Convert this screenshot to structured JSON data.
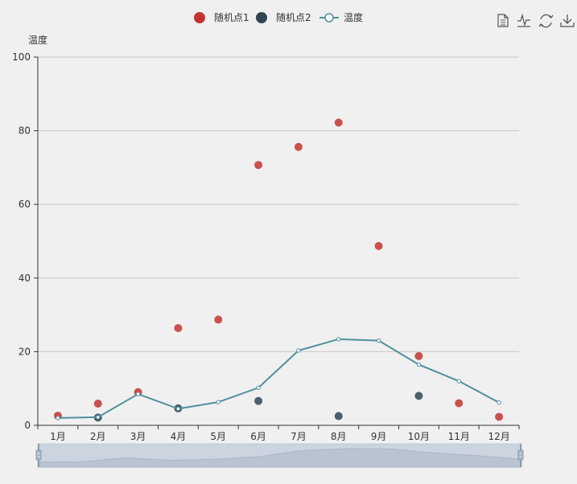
{
  "toolbox": {
    "items": [
      {
        "name": "data-view-icon"
      },
      {
        "name": "line-chart-icon"
      },
      {
        "name": "restore-icon"
      },
      {
        "name": "download-icon"
      }
    ]
  },
  "chart_data": {
    "type": "line",
    "title": "",
    "xlabel": "",
    "ylabel": "温度",
    "categories": [
      "1月",
      "2月",
      "3月",
      "4月",
      "5月",
      "6月",
      "7月",
      "8月",
      "9月",
      "10月",
      "11月",
      "12月"
    ],
    "ylim": [
      0,
      100
    ],
    "yticks": [
      0,
      20,
      40,
      60,
      80,
      100
    ],
    "grid": true,
    "legend_position": "top-center",
    "series": [
      {
        "name": "随机点1",
        "type": "scatter",
        "color": "#c23531",
        "values": [
          2.6,
          5.9,
          9.0,
          26.4,
          28.7,
          70.7,
          75.6,
          82.2,
          48.7,
          18.8,
          6.0,
          2.3
        ]
      },
      {
        "name": "随机点2",
        "type": "scatter",
        "color": "#2f4554",
        "values": [
          null,
          2.1,
          null,
          4.6,
          null,
          6.6,
          null,
          2.5,
          null,
          8.0,
          null,
          null
        ]
      },
      {
        "name": "温度",
        "type": "line",
        "color": "#4e919c",
        "values": [
          2.0,
          2.2,
          8.5,
          4.5,
          6.3,
          10.2,
          20.3,
          23.4,
          23.0,
          16.5,
          12.0,
          6.2
        ]
      }
    ],
    "datazoom": {
      "start": 0,
      "end": 100
    }
  }
}
